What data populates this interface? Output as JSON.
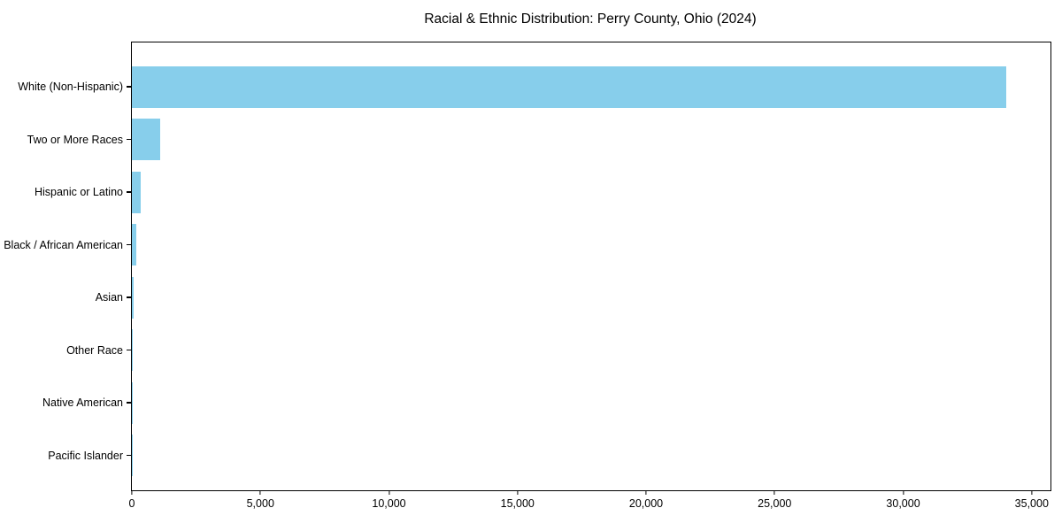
{
  "chart_data": {
    "type": "bar",
    "orientation": "horizontal",
    "title": "Racial & Ethnic Distribution: Perry County, Ohio (2024)",
    "categories": [
      "White (Non-Hispanic)",
      "Two or More Races",
      "Hispanic or Latino",
      "Black / African American",
      "Asian",
      "Other Race",
      "Native American",
      "Pacific Islander"
    ],
    "values": [
      34000,
      1090,
      360,
      155,
      65,
      50,
      25,
      5
    ],
    "bar_color": "#87CEEB",
    "xlabel": "",
    "ylabel": "",
    "xlim": [
      0,
      35730
    ],
    "x_ticks": [
      0,
      5000,
      10000,
      15000,
      20000,
      25000,
      30000,
      35000
    ],
    "x_tick_labels": [
      "0",
      "5,000",
      "10,000",
      "15,000",
      "20,000",
      "25,000",
      "30,000",
      "35,000"
    ],
    "grid": false,
    "legend": false,
    "background_color": "#ffffff",
    "frame_color": "#000000"
  }
}
